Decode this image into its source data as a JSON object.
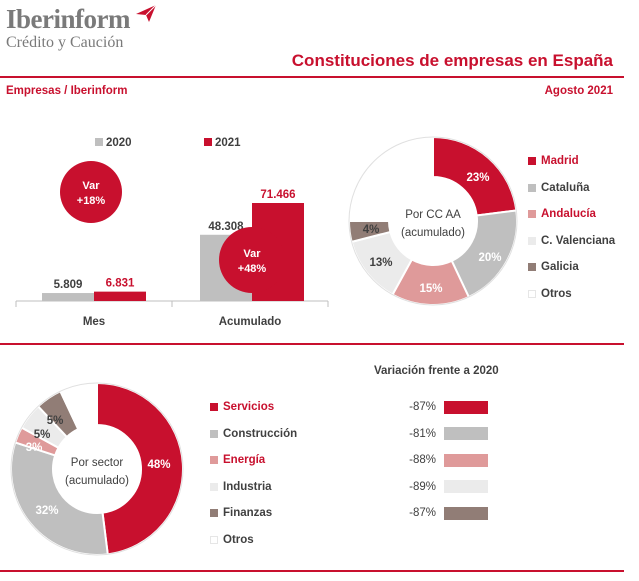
{
  "header": {
    "logo_text": "Iberinform",
    "logo_subtext": "Crédito y Caución",
    "title": "Constituciones de empresas en España",
    "source": "Empresas / Iberinform",
    "date": "Agosto 2021"
  },
  "colors": {
    "red": "#c8102e",
    "gray": "#bfbfbf",
    "pink": "#df9a9a",
    "lightgray": "#ebebeb",
    "brown": "#917d76",
    "white": "#ffffff"
  },
  "chart_data": [
    {
      "type": "bar",
      "categories": [
        "Mes",
        "Acumulado"
      ],
      "series": [
        {
          "name": "2020",
          "values": [
            5809,
            48308
          ]
        },
        {
          "name": "2021",
          "values": [
            6831,
            71466
          ]
        }
      ],
      "value_labels": {
        "2020": [
          "5.809",
          "48.308"
        ],
        "2021": [
          "6.831",
          "71.466"
        ]
      },
      "annotations": [
        {
          "line1": "Var",
          "line2": "+18%"
        },
        {
          "line1": "Var",
          "line2": "+48%"
        }
      ],
      "legend": "top"
    },
    {
      "type": "pie",
      "center_label": [
        "Por CC AA",
        "(acumulado)"
      ],
      "labels": [
        "Madrid",
        "Cataluña",
        "Andalucía",
        "C. Valenciana",
        "Galicia",
        "Otros"
      ],
      "values": [
        23,
        20,
        15,
        13,
        4,
        25
      ],
      "value_labels": [
        "23%",
        "20%",
        "15%",
        "13%",
        "4%",
        ""
      ],
      "colors": [
        "#c8102e",
        "#bfbfbf",
        "#df9a9a",
        "#ebebeb",
        "#917d76",
        "#ffffff"
      ],
      "legend": "right"
    },
    {
      "type": "pie",
      "center_label": [
        "Por sector",
        "(acumulado)"
      ],
      "labels": [
        "Servicios",
        "Construcción",
        "Energía",
        "Industria",
        "Finanzas",
        "Otros"
      ],
      "values": [
        48,
        32,
        3,
        5,
        5,
        7
      ],
      "value_labels": [
        "48%",
        "32%",
        "3%",
        "5%",
        "5%",
        ""
      ],
      "colors": [
        "#c8102e",
        "#bfbfbf",
        "#df9a9a",
        "#ebebeb",
        "#917d76",
        "#ffffff"
      ],
      "legend": "right"
    },
    {
      "type": "table",
      "title": "Variación frente a 2020",
      "rows": [
        {
          "value": "-87%",
          "color": "#c8102e"
        },
        {
          "value": "-81%",
          "color": "#bfbfbf"
        },
        {
          "value": "-88%",
          "color": "#df9a9a"
        },
        {
          "value": "-89%",
          "color": "#ebebeb"
        },
        {
          "value": "-87%",
          "color": "#917d76"
        }
      ]
    }
  ]
}
